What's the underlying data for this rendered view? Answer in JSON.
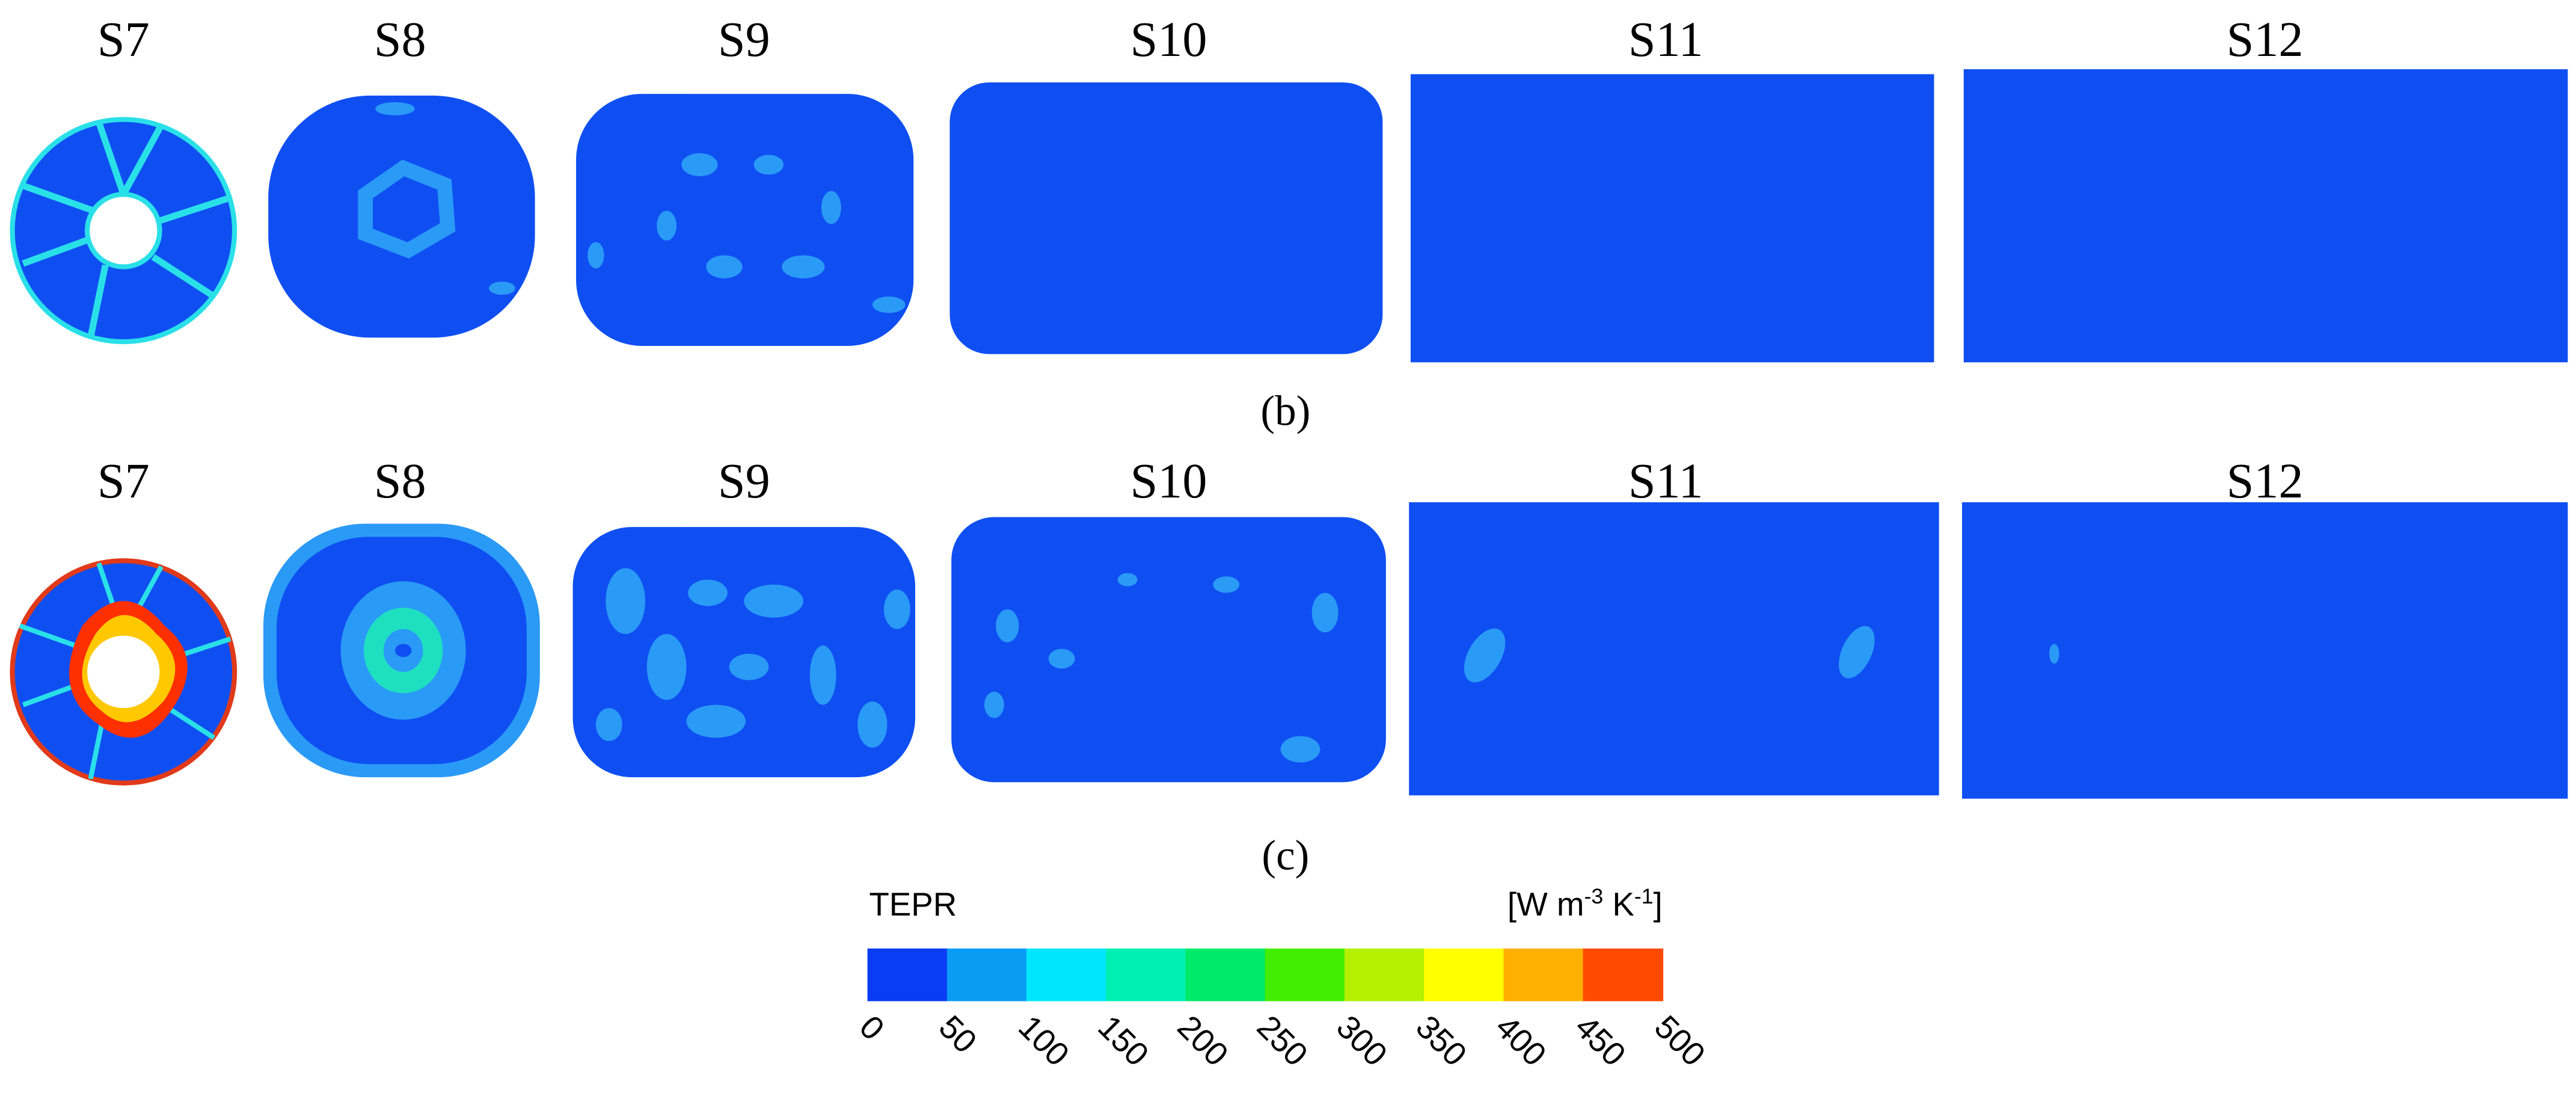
{
  "row_b": {
    "labels": [
      "S7",
      "S8",
      "S9",
      "S10",
      "S11",
      "S12"
    ],
    "panel": "(b)"
  },
  "row_c": {
    "labels": [
      "S7",
      "S8",
      "S9",
      "S10",
      "S11",
      "S12"
    ],
    "panel": "(c)"
  },
  "colorbar": {
    "title": "TEPR",
    "unit": [
      "[W m",
      "-3",
      " K",
      "-1",
      "]"
    ],
    "ticks": [
      0,
      50,
      100,
      150,
      200,
      250,
      300,
      350,
      400,
      450,
      500
    ],
    "colors": [
      "#0a3cf5",
      "#0a9cf5",
      "#00e6ff",
      "#00f0b4",
      "#00ea6a",
      "#44ee00",
      "#b4f000",
      "#ffff00",
      "#ffb000",
      "#ff4a00"
    ]
  }
}
